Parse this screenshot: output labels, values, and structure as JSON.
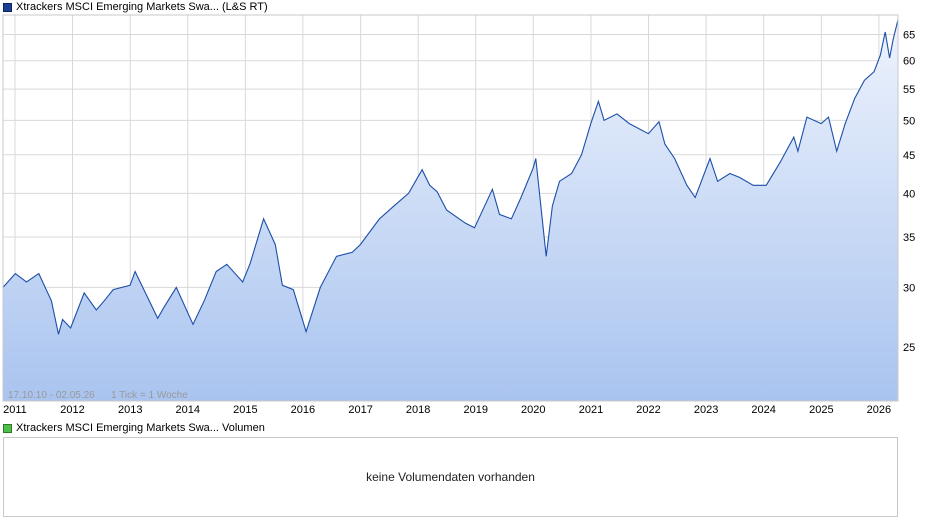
{
  "legend": {
    "price_label": "Xtrackers MSCI Emerging Markets Swa... (L&S RT)",
    "volume_label": "Xtrackers MSCI Emerging Markets Swa... Volumen"
  },
  "range_label": "17.10.10 - 02.05.26",
  "tick_label": "1 Tick = 1 Woche",
  "volume_empty_text": "keine Volumendaten vorhanden",
  "colors": {
    "line": "#1c4fa8",
    "fill_top": "#eef3fd",
    "fill_bottom": "#a9c4ef",
    "grid": "#d9d9d9"
  },
  "chart_data": {
    "type": "area",
    "title": "",
    "xlabel": "",
    "ylabel": "",
    "scale": "log",
    "x_ticks": [
      "2011",
      "2012",
      "2013",
      "2014",
      "2015",
      "2016",
      "2017",
      "2018",
      "2019",
      "2020",
      "2021",
      "2022",
      "2023",
      "2024",
      "2025",
      "2026"
    ],
    "y_ticks": [
      25,
      30,
      35,
      40,
      45,
      50,
      55,
      60,
      65
    ],
    "xlim": [
      "2010-10-17",
      "2026-05-02"
    ],
    "ylim": [
      21.2,
      69
    ],
    "grid": true,
    "series": [
      {
        "name": "Xtrackers MSCI Emerging Markets Swa... (L&S RT)",
        "x": [
          "2010-10-17",
          "2011-01-03",
          "2011-03-15",
          "2011-06-01",
          "2011-08-20",
          "2011-10-04",
          "2011-10-30",
          "2011-12-20",
          "2012-03-15",
          "2012-05-31",
          "2012-07-20",
          "2012-09-15",
          "2012-12-31",
          "2013-02-01",
          "2013-06-24",
          "2013-08-01",
          "2013-10-20",
          "2014-02-03",
          "2014-04-15",
          "2014-06-30",
          "2014-09-05",
          "2014-12-15",
          "2015-02-01",
          "2015-04-27",
          "2015-07-10",
          "2015-08-24",
          "2015-11-01",
          "2016-01-21",
          "2016-04-20",
          "2016-08-01",
          "2016-11-09",
          "2016-12-30",
          "2017-05-01",
          "2017-08-01",
          "2017-11-01",
          "2018-01-26",
          "2018-03-15",
          "2018-05-01",
          "2018-07-01",
          "2018-10-29",
          "2018-12-24",
          "2019-04-17",
          "2019-06-01",
          "2019-08-15",
          "2019-10-15",
          "2019-12-31",
          "2020-01-17",
          "2020-03-23",
          "2020-05-01",
          "2020-06-15",
          "2020-08-31",
          "2020-11-02",
          "2020-12-31",
          "2021-02-17",
          "2021-03-25",
          "2021-06-15",
          "2021-09-01",
          "2021-12-31",
          "2022-03-08",
          "2022-04-15",
          "2022-06-15",
          "2022-09-01",
          "2022-10-24",
          "2023-01-26",
          "2023-03-15",
          "2023-06-01",
          "2023-08-01",
          "2023-10-27",
          "2024-01-17",
          "2024-04-15",
          "2024-07-10",
          "2024-08-05",
          "2024-10-01",
          "2024-12-31",
          "2025-02-15",
          "2025-04-08",
          "2025-06-01",
          "2025-08-01",
          "2025-10-01",
          "2025-12-01",
          "2026-01-10",
          "2026-02-10",
          "2026-03-10",
          "2026-04-01",
          "2026-05-02"
        ],
        "values": [
          30.0,
          31.3,
          30.5,
          31.3,
          28.8,
          26.0,
          27.2,
          26.5,
          29.5,
          28.0,
          28.8,
          29.8,
          30.2,
          31.5,
          27.3,
          28.2,
          30.0,
          26.8,
          28.8,
          31.5,
          32.2,
          30.5,
          32.3,
          37.0,
          34.2,
          30.2,
          29.8,
          26.2,
          30.0,
          33.0,
          33.4,
          34.2,
          37.0,
          38.5,
          40.0,
          43.0,
          41.0,
          40.2,
          38.0,
          36.5,
          36.0,
          40.5,
          37.5,
          37.0,
          39.5,
          43.2,
          44.5,
          33.0,
          38.5,
          41.5,
          42.5,
          45.0,
          49.5,
          53.0,
          50.0,
          51.0,
          49.5,
          48.0,
          49.8,
          46.5,
          44.5,
          41.0,
          39.5,
          44.5,
          41.5,
          42.5,
          42.0,
          41.0,
          41.0,
          44.0,
          47.5,
          45.5,
          50.5,
          49.5,
          50.5,
          45.5,
          49.5,
          53.5,
          56.5,
          58.0,
          61.0,
          65.5,
          60.5,
          64.0,
          68.0
        ]
      }
    ]
  }
}
